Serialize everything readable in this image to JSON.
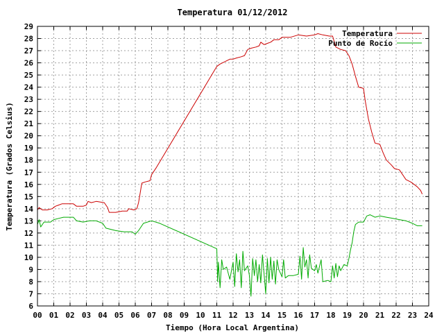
{
  "chart_data": {
    "type": "line",
    "title": "Temperatura 01/12/2012",
    "xlabel": "Tiempo (Hora Local Argentina)",
    "ylabel": "Temperatura (Grados Celsius)",
    "xlim": [
      0,
      24
    ],
    "ylim": [
      6,
      29
    ],
    "x_ticks": [
      "00",
      "01",
      "02",
      "03",
      "04",
      "05",
      "06",
      "07",
      "08",
      "09",
      "10",
      "11",
      "12",
      "13",
      "14",
      "15",
      "16",
      "17",
      "18",
      "19",
      "20",
      "21",
      "22",
      "23",
      "24"
    ],
    "y_ticks": [
      6,
      7,
      8,
      9,
      10,
      11,
      12,
      13,
      14,
      15,
      16,
      17,
      18,
      19,
      20,
      21,
      22,
      23,
      24,
      25,
      26,
      27,
      28,
      29
    ],
    "grid": true,
    "legend_position": "top-right",
    "series": [
      {
        "name": "Temperatura",
        "color": "#cc0000",
        "points": [
          [
            0.0,
            13.9
          ],
          [
            0.1,
            14.1
          ],
          [
            0.3,
            13.9
          ],
          [
            0.6,
            13.9
          ],
          [
            0.9,
            14.0
          ],
          [
            1.1,
            14.2
          ],
          [
            1.3,
            14.3
          ],
          [
            1.5,
            14.4
          ],
          [
            1.7,
            14.4
          ],
          [
            2.2,
            14.4
          ],
          [
            2.4,
            14.2
          ],
          [
            2.8,
            14.2
          ],
          [
            3.0,
            14.3
          ],
          [
            3.1,
            14.6
          ],
          [
            3.3,
            14.5
          ],
          [
            3.6,
            14.6
          ],
          [
            4.1,
            14.5
          ],
          [
            4.3,
            14.1
          ],
          [
            4.4,
            13.7
          ],
          [
            4.8,
            13.7
          ],
          [
            5.2,
            13.8
          ],
          [
            5.5,
            13.8
          ],
          [
            5.6,
            14.0
          ],
          [
            5.9,
            13.9
          ],
          [
            6.1,
            14.0
          ],
          [
            6.2,
            14.5
          ],
          [
            6.3,
            15.3
          ],
          [
            6.4,
            16.1
          ],
          [
            6.6,
            16.2
          ],
          [
            6.9,
            16.3
          ],
          [
            7.0,
            16.8
          ],
          [
            7.3,
            17.4
          ],
          [
            11.0,
            25.7
          ],
          [
            11.2,
            25.9
          ],
          [
            11.5,
            26.1
          ],
          [
            11.8,
            26.3
          ],
          [
            12.0,
            26.3
          ],
          [
            12.2,
            26.4
          ],
          [
            12.5,
            26.5
          ],
          [
            12.7,
            26.6
          ],
          [
            12.9,
            27.1
          ],
          [
            13.1,
            27.2
          ],
          [
            13.4,
            27.3
          ],
          [
            13.6,
            27.4
          ],
          [
            13.7,
            27.7
          ],
          [
            13.9,
            27.5
          ],
          [
            14.1,
            27.6
          ],
          [
            14.3,
            27.7
          ],
          [
            14.5,
            27.9
          ],
          [
            14.8,
            27.9
          ],
          [
            15.0,
            28.1
          ],
          [
            15.5,
            28.1
          ],
          [
            16.0,
            28.3
          ],
          [
            16.5,
            28.2
          ],
          [
            17.0,
            28.3
          ],
          [
            17.2,
            28.4
          ],
          [
            17.5,
            28.3
          ],
          [
            17.9,
            28.2
          ],
          [
            18.1,
            28.2
          ],
          [
            18.3,
            27.3
          ],
          [
            18.6,
            27.1
          ],
          [
            18.9,
            27.0
          ],
          [
            19.1,
            26.6
          ],
          [
            19.3,
            25.9
          ],
          [
            19.5,
            24.9
          ],
          [
            19.7,
            24.0
          ],
          [
            20.0,
            23.9
          ],
          [
            20.1,
            22.9
          ],
          [
            20.3,
            21.4
          ],
          [
            20.5,
            20.3
          ],
          [
            20.7,
            19.4
          ],
          [
            21.0,
            19.3
          ],
          [
            21.2,
            18.6
          ],
          [
            21.4,
            18.0
          ],
          [
            21.7,
            17.6
          ],
          [
            21.9,
            17.3
          ],
          [
            22.2,
            17.2
          ],
          [
            22.4,
            16.8
          ],
          [
            22.6,
            16.4
          ],
          [
            22.9,
            16.2
          ],
          [
            23.1,
            16.0
          ],
          [
            23.3,
            15.8
          ],
          [
            23.5,
            15.5
          ],
          [
            23.6,
            15.2
          ]
        ]
      },
      {
        "name": "Punto de Rocío",
        "color": "#00aa00",
        "points": [
          [
            0.0,
            12.7
          ],
          [
            0.1,
            13.1
          ],
          [
            0.2,
            12.5
          ],
          [
            0.4,
            12.9
          ],
          [
            0.8,
            12.9
          ],
          [
            1.0,
            13.1
          ],
          [
            1.3,
            13.2
          ],
          [
            1.6,
            13.3
          ],
          [
            2.2,
            13.3
          ],
          [
            2.4,
            13.0
          ],
          [
            2.8,
            12.9
          ],
          [
            3.2,
            13.0
          ],
          [
            3.6,
            13.0
          ],
          [
            4.0,
            12.8
          ],
          [
            4.2,
            12.4
          ],
          [
            4.5,
            12.3
          ],
          [
            4.8,
            12.2
          ],
          [
            5.3,
            12.1
          ],
          [
            5.8,
            12.1
          ],
          [
            6.0,
            11.9
          ],
          [
            6.2,
            12.2
          ],
          [
            6.5,
            12.8
          ],
          [
            7.0,
            13.0
          ],
          [
            7.5,
            12.8
          ],
          [
            11.0,
            10.7
          ],
          [
            11.05,
            8.0
          ],
          [
            11.1,
            9.6
          ],
          [
            11.2,
            7.5
          ],
          [
            11.3,
            9.8
          ],
          [
            11.4,
            9.0
          ],
          [
            11.6,
            9.2
          ],
          [
            11.8,
            8.2
          ],
          [
            12.0,
            9.6
          ],
          [
            12.1,
            7.6
          ],
          [
            12.2,
            10.3
          ],
          [
            12.3,
            8.8
          ],
          [
            12.4,
            9.8
          ],
          [
            12.5,
            7.5
          ],
          [
            12.6,
            10.5
          ],
          [
            12.7,
            8.9
          ],
          [
            12.9,
            9.3
          ],
          [
            13.0,
            8.5
          ],
          [
            13.1,
            6.8
          ],
          [
            13.2,
            9.9
          ],
          [
            13.3,
            8.5
          ],
          [
            13.4,
            9.8
          ],
          [
            13.5,
            8.0
          ],
          [
            13.6,
            9.4
          ],
          [
            13.7,
            7.9
          ],
          [
            13.8,
            10.2
          ],
          [
            13.9,
            8.6
          ],
          [
            14.0,
            7.0
          ],
          [
            14.1,
            9.9
          ],
          [
            14.2,
            7.9
          ],
          [
            14.3,
            10.0
          ],
          [
            14.4,
            8.2
          ],
          [
            14.5,
            9.7
          ],
          [
            14.6,
            7.8
          ],
          [
            14.7,
            9.8
          ],
          [
            14.8,
            9.0
          ],
          [
            15.0,
            8.4
          ],
          [
            15.1,
            9.8
          ],
          [
            15.2,
            8.3
          ],
          [
            15.4,
            8.5
          ],
          [
            15.7,
            8.5
          ],
          [
            16.0,
            8.6
          ],
          [
            16.1,
            10.1
          ],
          [
            16.2,
            8.2
          ],
          [
            16.3,
            10.8
          ],
          [
            16.4,
            9.2
          ],
          [
            16.5,
            9.8
          ],
          [
            16.6,
            8.3
          ],
          [
            16.7,
            10.2
          ],
          [
            16.8,
            9.1
          ],
          [
            17.0,
            8.9
          ],
          [
            17.1,
            9.4
          ],
          [
            17.2,
            8.7
          ],
          [
            17.4,
            9.8
          ],
          [
            17.5,
            8.0
          ],
          [
            17.8,
            8.1
          ],
          [
            18.0,
            8.0
          ],
          [
            18.1,
            9.3
          ],
          [
            18.2,
            8.3
          ],
          [
            18.3,
            9.5
          ],
          [
            18.4,
            8.4
          ],
          [
            18.5,
            9.3
          ],
          [
            18.6,
            8.9
          ],
          [
            18.8,
            9.4
          ],
          [
            19.0,
            9.3
          ],
          [
            19.1,
            9.9
          ],
          [
            19.2,
            10.6
          ],
          [
            19.3,
            11.2
          ],
          [
            19.4,
            12.1
          ],
          [
            19.5,
            12.7
          ],
          [
            19.7,
            12.9
          ],
          [
            20.0,
            12.9
          ],
          [
            20.2,
            13.4
          ],
          [
            20.4,
            13.5
          ],
          [
            20.7,
            13.3
          ],
          [
            21.0,
            13.4
          ],
          [
            21.4,
            13.3
          ],
          [
            21.8,
            13.2
          ],
          [
            22.2,
            13.1
          ],
          [
            22.6,
            13.0
          ],
          [
            23.0,
            12.8
          ],
          [
            23.3,
            12.6
          ],
          [
            23.6,
            12.6
          ]
        ]
      }
    ]
  }
}
